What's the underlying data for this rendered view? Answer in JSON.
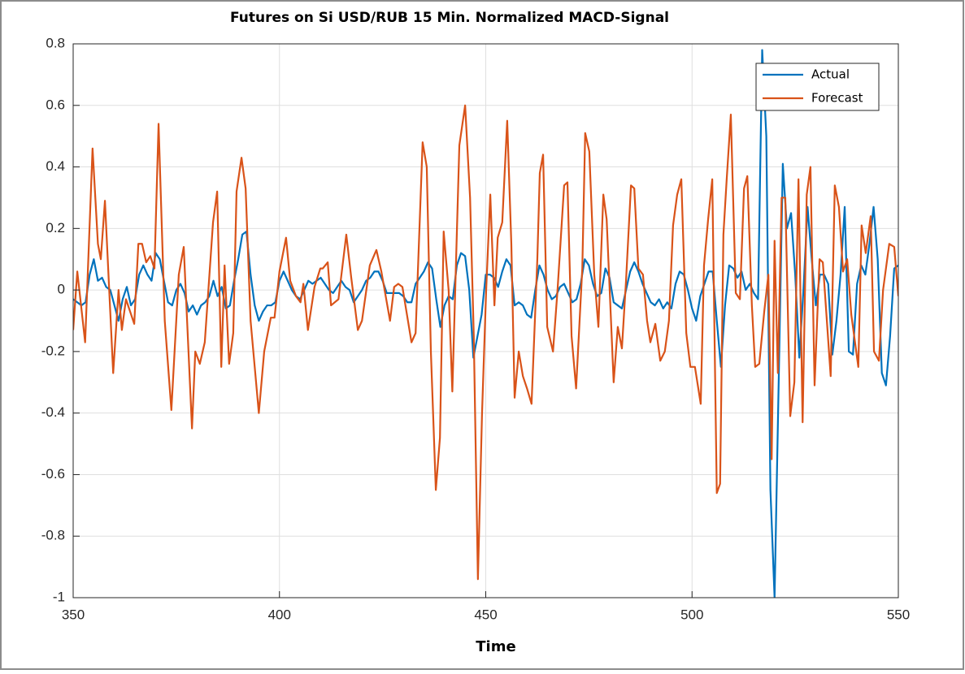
{
  "chart_data": {
    "type": "line",
    "title": "Futures on Si USD/RUB 15 Min. Normalized MACD-Signal",
    "xlabel": "Time",
    "xlim": [
      350,
      550
    ],
    "xticks": [
      350,
      400,
      450,
      500,
      550
    ],
    "ylim": [
      -1,
      0.8
    ],
    "yticks": [
      -1,
      -0.8,
      -0.6,
      -0.4,
      -0.2,
      0,
      0.2,
      0.4,
      0.6,
      0.8
    ],
    "grid": true,
    "legend": "northeast",
    "series": [
      {
        "name": "Actual",
        "color": "#0072bd",
        "x": [
          350,
          351,
          352,
          353,
          354,
          355,
          356,
          357,
          358,
          359,
          360,
          361,
          362,
          363,
          364,
          365,
          366,
          367,
          368,
          369,
          370,
          371,
          372,
          373,
          374,
          375,
          376,
          377,
          378,
          379,
          380,
          381,
          382,
          383,
          384,
          385,
          386,
          387,
          388,
          389,
          390,
          391,
          392,
          393,
          394,
          395,
          396,
          397,
          398,
          399,
          400,
          401,
          402,
          403,
          404,
          405,
          406,
          407,
          408,
          409,
          410,
          411,
          412,
          413,
          414,
          415,
          416,
          417,
          418,
          419,
          420,
          421,
          422,
          423,
          424,
          425,
          426,
          427,
          428,
          429,
          430,
          431,
          432,
          433,
          434,
          435,
          436,
          437,
          438,
          439,
          440,
          441,
          442,
          443,
          444,
          445,
          446,
          447,
          448,
          449,
          450,
          451,
          452,
          453,
          454,
          455,
          456,
          457,
          458,
          459,
          460,
          461,
          462,
          463,
          464,
          465,
          466,
          467,
          468,
          469,
          470,
          471,
          472,
          473,
          474,
          475,
          476,
          477,
          478,
          479,
          480,
          481,
          482,
          483,
          484,
          485,
          486,
          487,
          488,
          489,
          490,
          491,
          492,
          493,
          494,
          495,
          496,
          497,
          498,
          499,
          500,
          501,
          502,
          503,
          504,
          505,
          506,
          507,
          508,
          509,
          510,
          511,
          512,
          513,
          514,
          515,
          516,
          517,
          518,
          519,
          520,
          521,
          522,
          523,
          524,
          525,
          526,
          527,
          528,
          529,
          530,
          531,
          532,
          533,
          534,
          535,
          536,
          537,
          538,
          539,
          540,
          541,
          542,
          543,
          544,
          545,
          546,
          547,
          548,
          549,
          550
        ],
        "values": [
          -0.03,
          -0.04,
          -0.05,
          -0.04,
          0.05,
          0.1,
          0.03,
          0.04,
          0.01,
          0.0,
          -0.05,
          -0.1,
          -0.03,
          0.01,
          -0.05,
          -0.03,
          0.05,
          0.08,
          0.05,
          0.03,
          0.12,
          0.1,
          0.03,
          -0.04,
          -0.05,
          0.0,
          0.02,
          -0.01,
          -0.07,
          -0.05,
          -0.08,
          -0.05,
          -0.04,
          -0.02,
          0.03,
          -0.02,
          0.01,
          -0.06,
          -0.05,
          0.03,
          0.1,
          0.18,
          0.19,
          0.05,
          -0.05,
          -0.1,
          -0.07,
          -0.05,
          -0.05,
          -0.04,
          0.03,
          0.06,
          0.03,
          0.0,
          -0.02,
          -0.03,
          0.0,
          0.03,
          0.02,
          0.03,
          0.04,
          0.02,
          0.0,
          -0.01,
          0.01,
          0.03,
          0.01,
          0.0,
          -0.04,
          -0.02,
          0.0,
          0.03,
          0.04,
          0.06,
          0.06,
          0.03,
          -0.01,
          -0.01,
          -0.01,
          -0.01,
          -0.02,
          -0.04,
          -0.04,
          0.02,
          0.04,
          0.06,
          0.09,
          0.07,
          -0.03,
          -0.12,
          -0.05,
          -0.02,
          -0.03,
          0.08,
          0.12,
          0.11,
          0.0,
          -0.22,
          -0.15,
          -0.08,
          0.05,
          0.05,
          0.04,
          0.01,
          0.06,
          0.1,
          0.08,
          -0.05,
          -0.04,
          -0.05,
          -0.08,
          -0.09,
          0.0,
          0.08,
          0.05,
          0.0,
          -0.03,
          -0.02,
          0.01,
          0.02,
          -0.01,
          -0.04,
          -0.03,
          0.02,
          0.1,
          0.08,
          0.02,
          -0.02,
          -0.01,
          0.07,
          0.04,
          -0.04,
          -0.05,
          -0.06,
          0.0,
          0.06,
          0.09,
          0.06,
          0.02,
          -0.01,
          -0.04,
          -0.05,
          -0.03,
          -0.06,
          -0.04,
          -0.06,
          0.02,
          0.06,
          0.05,
          0.0,
          -0.06,
          -0.1,
          -0.02,
          0.02,
          0.06,
          0.06,
          -0.1,
          -0.25,
          -0.05,
          0.08,
          0.07,
          0.04,
          0.06,
          0.0,
          0.02,
          -0.01,
          -0.03,
          0.78,
          0.5,
          -0.65,
          -1.0,
          -0.3,
          0.41,
          0.2,
          0.25,
          0.05,
          -0.22,
          0.0,
          0.27,
          0.1,
          -0.05,
          0.05,
          0.05,
          0.02,
          -0.21,
          -0.1,
          0.05,
          0.27,
          -0.2,
          -0.21,
          0.02,
          0.08,
          0.05,
          0.15,
          0.27,
          0.1,
          -0.27,
          -0.31,
          -0.15,
          0.07,
          0.08
        ]
      },
      {
        "name": "Forecast",
        "color": "#d95319",
        "x": [
          350,
          351,
          352.9,
          354.7,
          356,
          356.7,
          357.7,
          359.7,
          361,
          361.8,
          362.8,
          364.8,
          365.8,
          366.7,
          367.7,
          368.7,
          369.7,
          370.7,
          372.2,
          373.8,
          375.6,
          376.8,
          378.8,
          379.6,
          380.7,
          381.9,
          383.9,
          384.9,
          385.9,
          386.7,
          387.8,
          388.8,
          389.6,
          390.8,
          391.8,
          393,
          395,
          396.3,
          397.9,
          398.8,
          400,
          401.6,
          402.6,
          404,
          405.1,
          405.8,
          406.9,
          408.5,
          409.9,
          410.5,
          411.7,
          412.5,
          414.3,
          416.2,
          417.4,
          419,
          420,
          421.9,
          423.5,
          424.7,
          426.8,
          427.8,
          428.8,
          429.8,
          432,
          433,
          434.7,
          435.7,
          436.7,
          437.9,
          438.9,
          439.8,
          441,
          441.9,
          443.6,
          445,
          446.2,
          447.1,
          448.1,
          449.1,
          450.1,
          451.1,
          452.1,
          452.9,
          454,
          455.2,
          456.2,
          457,
          458,
          459,
          460,
          461.1,
          462.5,
          463.1,
          463.9,
          464.9,
          466.3,
          467.4,
          469,
          469.8,
          470.8,
          471.9,
          473.4,
          474.1,
          475.1,
          476.3,
          477.3,
          478.5,
          479.3,
          481,
          482,
          483,
          484,
          485.2,
          486,
          487,
          488.1,
          489.1,
          489.9,
          491.1,
          492.3,
          493.4,
          494.4,
          495.4,
          496.4,
          497.4,
          498.6,
          499.6,
          500.7,
          502.1,
          502.9,
          503.9,
          504.9,
          506,
          506.8,
          507.6,
          508.4,
          509.4,
          510.6,
          511.6,
          512.6,
          513.4,
          514.5,
          515.3,
          516.3,
          517.5,
          518.5,
          519.3,
          520,
          520.8,
          521.7,
          522.6,
          523.8,
          524.8,
          525.8,
          526.8,
          527.8,
          528.7,
          529.7,
          530.9,
          531.7,
          533.6,
          534.6,
          535.6,
          536.6,
          537.6,
          538.6,
          540.3,
          541.1,
          542.1,
          543.3,
          544.1,
          545.3,
          546.3,
          547.8,
          549,
          550
        ],
        "values": [
          -0.13,
          0.06,
          -0.17,
          0.46,
          0.15,
          0.1,
          0.29,
          -0.27,
          0,
          -0.13,
          -0.03,
          -0.11,
          0.15,
          0.15,
          0.09,
          0.11,
          0.07,
          0.54,
          -0.1,
          -0.39,
          0.05,
          0.14,
          -0.45,
          -0.2,
          -0.24,
          -0.17,
          0.22,
          0.32,
          -0.25,
          0.08,
          -0.24,
          -0.14,
          0.32,
          0.43,
          0.33,
          -0.1,
          -0.4,
          -0.2,
          -0.09,
          -0.09,
          0.06,
          0.17,
          0.03,
          -0.02,
          -0.04,
          0.02,
          -0.13,
          0.01,
          0.07,
          0.07,
          0.09,
          -0.05,
          -0.03,
          0.18,
          0.04,
          -0.13,
          -0.1,
          0.08,
          0.13,
          0.06,
          -0.1,
          0.01,
          0.02,
          0.01,
          -0.17,
          -0.14,
          0.48,
          0.4,
          -0.2,
          -0.65,
          -0.48,
          0.19,
          0,
          -0.33,
          0.47,
          0.6,
          0.3,
          -0.15,
          -0.94,
          -0.4,
          0,
          0.31,
          -0.05,
          0.17,
          0.22,
          0.55,
          0.15,
          -0.35,
          -0.2,
          -0.28,
          -0.32,
          -0.37,
          0.1,
          0.38,
          0.44,
          -0.12,
          -0.2,
          0,
          0.34,
          0.35,
          -0.15,
          -0.32,
          0.07,
          0.51,
          0.45,
          0.05,
          -0.12,
          0.31,
          0.23,
          -0.3,
          -0.12,
          -0.19,
          0.03,
          0.34,
          0.33,
          0.07,
          0.05,
          -0.1,
          -0.17,
          -0.11,
          -0.23,
          -0.2,
          -0.1,
          0.21,
          0.31,
          0.36,
          -0.14,
          -0.25,
          -0.25,
          -0.37,
          0.08,
          0.23,
          0.36,
          -0.66,
          -0.63,
          0.18,
          0.36,
          0.57,
          -0.01,
          -0.03,
          0.33,
          0.37,
          -0.05,
          -0.25,
          -0.24,
          -0.07,
          0.05,
          -0.55,
          0.16,
          -0.27,
          0.3,
          0.3,
          -0.41,
          -0.3,
          0.36,
          -0.43,
          0.31,
          0.4,
          -0.31,
          0.1,
          0.09,
          -0.28,
          0.34,
          0.27,
          0.06,
          0.1,
          -0.08,
          -0.25,
          0.21,
          0.12,
          0.24,
          -0.2,
          -0.23,
          0,
          0.15,
          0.14,
          -0.02
        ]
      }
    ]
  }
}
